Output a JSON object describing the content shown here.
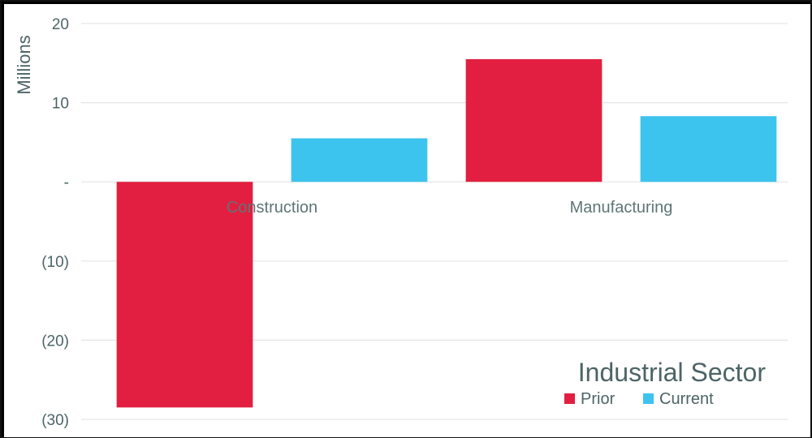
{
  "chart_data": {
    "type": "bar",
    "title": "Industrial Sector",
    "ylabel": "Millions",
    "categories": [
      "Construction",
      "Manufacturing"
    ],
    "series": [
      {
        "name": "Prior",
        "values": [
          -28.5,
          15.5
        ],
        "color": "#e21f40"
      },
      {
        "name": "Current",
        "values": [
          5.5,
          8.3
        ],
        "color": "#3dc4ee"
      }
    ],
    "ylim": [
      -30,
      20
    ],
    "yticks": [
      20,
      10,
      0,
      -10,
      -20,
      -30
    ],
    "ytick_labels": [
      "20",
      "10",
      "-",
      "(10)",
      "(20)",
      "(30)"
    ],
    "grid": true,
    "legend_position": "bottom-right"
  }
}
